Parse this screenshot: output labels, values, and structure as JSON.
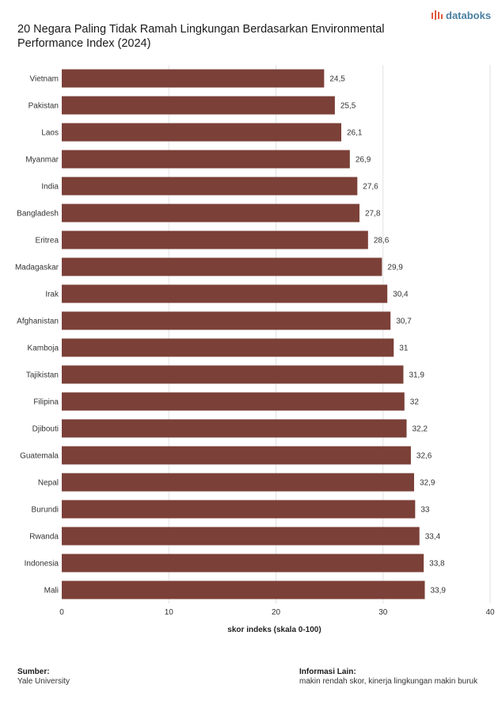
{
  "header": {
    "title": "20 Negara Paling Tidak Ramah Lingkungan Berdasarkan Environmental Performance Index (2024)",
    "brand": "databoks",
    "brand_icon": "databoks-logo-icon",
    "brand_color": "#4a7fa0",
    "brand_icon_color": "#e05a3a"
  },
  "chart_data": {
    "type": "bar",
    "orientation": "horizontal",
    "categories": [
      "Vietnam",
      "Pakistan",
      "Laos",
      "Myanmar",
      "India",
      "Bangladesh",
      "Eritrea",
      "Madagaskar",
      "Irak",
      "Afghanistan",
      "Kamboja",
      "Tajikistan",
      "Filipina",
      "Djibouti",
      "Guatemala",
      "Nepal",
      "Burundi",
      "Rwanda",
      "Indonesia",
      "Mali"
    ],
    "values": [
      24.5,
      25.5,
      26.1,
      26.9,
      27.6,
      27.8,
      28.6,
      29.9,
      30.4,
      30.7,
      31,
      31.9,
      32,
      32.2,
      32.6,
      32.9,
      33,
      33.4,
      33.8,
      33.9
    ],
    "data_labels": [
      "24,5",
      "25,5",
      "26,1",
      "26,9",
      "27,6",
      "27,8",
      "28,6",
      "29,9",
      "30,4",
      "30,7",
      "31",
      "31,9",
      "32",
      "32,2",
      "32,6",
      "32,9",
      "33",
      "33,4",
      "33,8",
      "33,9"
    ],
    "title": "20 Negara Paling Tidak Ramah Lingkungan Berdasarkan Environmental Performance Index (2024)",
    "xlabel": "skor indeks (skala 0-100)",
    "ylabel": "",
    "xlim": [
      0,
      40
    ],
    "xticks": [
      0,
      10,
      20,
      30,
      40
    ],
    "grid": true,
    "bar_color": "#7b4038",
    "grid_color": "#e2e2e2"
  },
  "footer": {
    "source_label": "Sumber:",
    "source_value": "Yale University",
    "info_label": "Informasi Lain:",
    "info_value": "makin rendah skor, kinerja lingkungan makin buruk"
  }
}
